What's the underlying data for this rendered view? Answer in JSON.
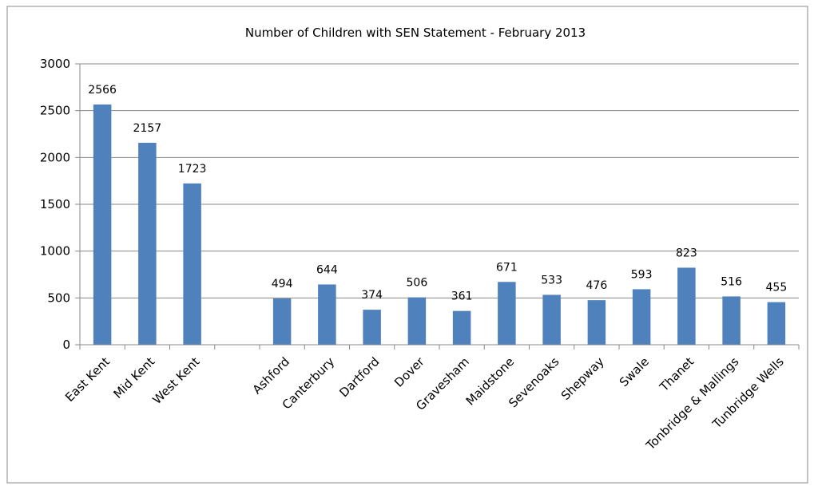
{
  "chart_data": {
    "type": "bar",
    "title": "Number of Children with SEN Statement - February 2013",
    "xlabel": "",
    "ylabel": "",
    "ylim": [
      0,
      3000
    ],
    "yticks": [
      "0",
      "500",
      "1000",
      "1500",
      "2000",
      "2500",
      "3000"
    ],
    "grid": true,
    "legend": "none",
    "bar_color": "#4F81BD",
    "categories": [
      "East Kent",
      "Mid Kent",
      "West Kent",
      "",
      "Ashford",
      "Canterbury",
      "Dartford",
      "Dover",
      "Gravesham",
      "Maidstone",
      "Sevenoaks",
      "Shepway",
      "Swale",
      "Thanet",
      "Tonbridge & Mallings",
      "Tunbridge Wells"
    ],
    "values": [
      2566,
      2157,
      1723,
      null,
      494,
      644,
      374,
      506,
      361,
      671,
      533,
      476,
      593,
      823,
      516,
      455
    ],
    "data_labels": [
      "2566",
      "2157",
      "1723",
      "",
      "494",
      "644",
      "374",
      "506",
      "361",
      "671",
      "533",
      "476",
      "593",
      "823",
      "516",
      "455"
    ]
  }
}
